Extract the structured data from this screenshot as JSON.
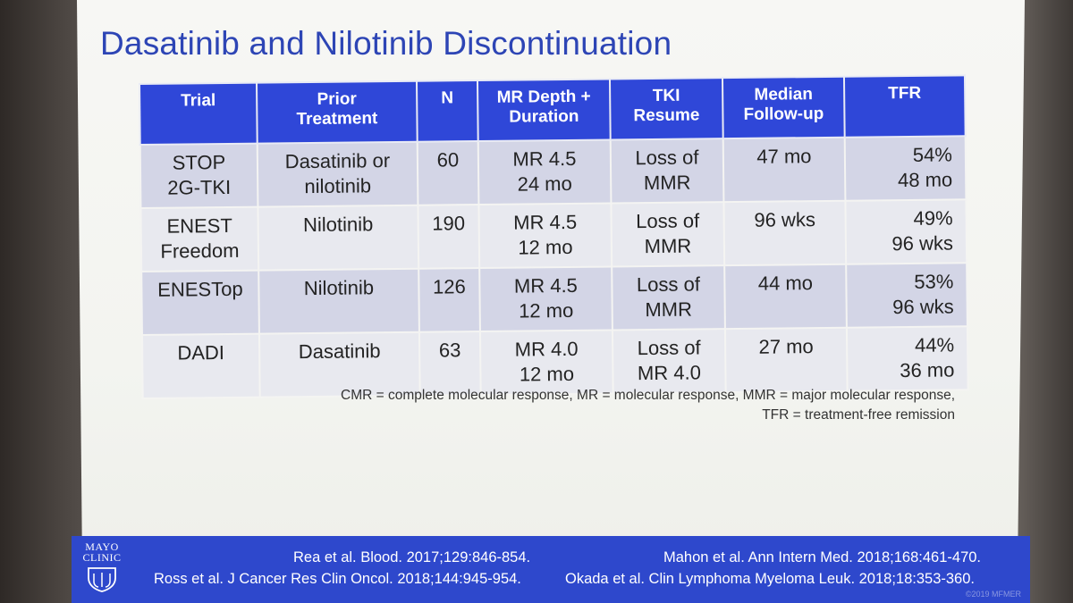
{
  "slide": {
    "title": "Dasatinib and Nilotinib Discontinuation"
  },
  "table": {
    "headers": [
      "Trial",
      "Prior\nTreatment",
      "N",
      "MR Depth +\nDuration",
      "TKI\nResume",
      "Median\nFollow-up",
      "TFR"
    ],
    "rows": [
      {
        "trial": "STOP\n2G-TKI",
        "prior": "Dasatinib or\nnilotinib",
        "n": "60",
        "depth": "MR 4.5\n24 mo",
        "resume": "Loss of\nMMR",
        "followup": "47 mo",
        "tfr": "54%\n48 mo"
      },
      {
        "trial": "ENEST\nFreedom",
        "prior": "Nilotinib",
        "n": "190",
        "depth": "MR 4.5\n12 mo",
        "resume": "Loss of\nMMR",
        "followup": "96 wks",
        "tfr": "49%\n96 wks"
      },
      {
        "trial": "ENESTop",
        "prior": "Nilotinib",
        "n": "126",
        "depth": "MR 4.5\n12 mo",
        "resume": "Loss of\nMMR",
        "followup": "44 mo",
        "tfr": "53%\n96 wks"
      },
      {
        "trial": "DADI",
        "prior": "Dasatinib",
        "n": "63",
        "depth": "MR 4.0\n12 mo",
        "resume": "Loss of\nMR 4.0",
        "followup": "27 mo",
        "tfr": "44%\n36 mo"
      }
    ]
  },
  "abbreviations": {
    "line1": "CMR = complete molecular response, MR = molecular response, MMR = major molecular response,",
    "line2": "TFR = treatment-free remission"
  },
  "footer": {
    "logo_line1": "MAYO",
    "logo_line2": "CLINIC",
    "references": [
      "Rea et al. Blood. 2017;129:846-854.",
      "Ross et al. J Cancer Res Clin Oncol. 2018;144:945-954.",
      "Mahon et al. Ann Intern Med. 2018;168:461-470.",
      "Okada et al. Clin Lymphoma Myeloma Leuk. 2018;18:353-360."
    ],
    "tag": "©2019 MFMER"
  },
  "colors": {
    "title": "#2d45b5",
    "header_bg": "#2f47d8",
    "row_odd": "#d3d5e6",
    "row_even": "#e8e9ef",
    "footer_bg": "#2e48cc"
  }
}
